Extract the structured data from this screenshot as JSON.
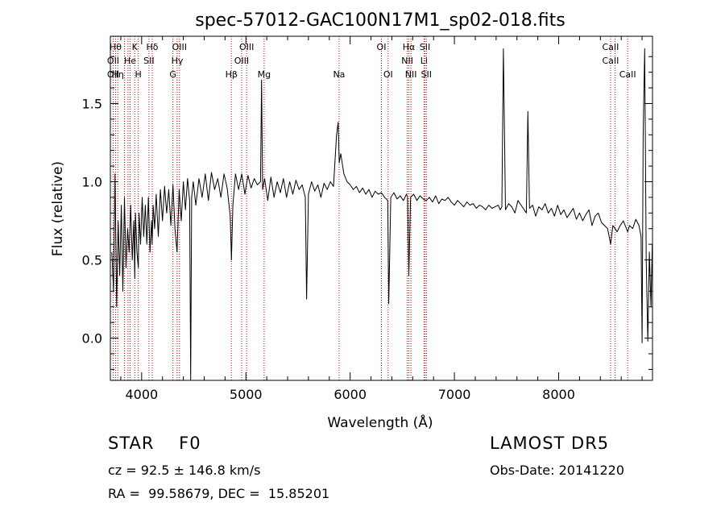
{
  "chart_data": {
    "type": "line",
    "title": "spec-57012-GAC100N17M1_sp02-018.fits",
    "xlabel": "Wavelength (Å)",
    "ylabel": "Flux (relative)",
    "xlim": [
      3700,
      8900
    ],
    "ylim": [
      -0.27,
      1.93
    ],
    "xticks": [
      4000,
      5000,
      6000,
      7000,
      8000
    ],
    "yticks": [
      0.0,
      0.5,
      1.0,
      1.5
    ],
    "ytick_labels": [
      "0.0",
      "0.5",
      "1.0",
      "1.5"
    ],
    "grid": false,
    "series": [
      {
        "color": "#000000",
        "x": [
          3715,
          3730,
          3745,
          3760,
          3775,
          3790,
          3805,
          3820,
          3835,
          3850,
          3865,
          3880,
          3895,
          3910,
          3925,
          3934,
          3940,
          3955,
          3968,
          3975,
          3990,
          4005,
          4020,
          4035,
          4050,
          4065,
          4080,
          4095,
          4101,
          4110,
          4125,
          4140,
          4160,
          4180,
          4200,
          4220,
          4240,
          4260,
          4280,
          4300,
          4320,
          4340,
          4360,
          4380,
          4400,
          4420,
          4440,
          4460,
          4470,
          4480,
          4495,
          4520,
          4550,
          4580,
          4610,
          4640,
          4670,
          4700,
          4730,
          4760,
          4790,
          4820,
          4850,
          4861,
          4875,
          4900,
          4930,
          4960,
          4990,
          5020,
          5050,
          5080,
          5110,
          5140,
          5150,
          5160,
          5180,
          5210,
          5240,
          5270,
          5300,
          5330,
          5360,
          5390,
          5420,
          5450,
          5480,
          5510,
          5540,
          5570,
          5582,
          5600,
          5630,
          5660,
          5690,
          5720,
          5750,
          5780,
          5810,
          5840,
          5870,
          5885,
          5895,
          5910,
          5940,
          5970,
          6000,
          6030,
          6060,
          6090,
          6120,
          6150,
          6180,
          6210,
          6240,
          6270,
          6300,
          6330,
          6360,
          6370,
          6390,
          6420,
          6450,
          6480,
          6510,
          6540,
          6550,
          6563,
          6580,
          6610,
          6640,
          6670,
          6700,
          6730,
          6760,
          6790,
          6820,
          6850,
          6880,
          6910,
          6940,
          6970,
          7000,
          7030,
          7060,
          7090,
          7120,
          7150,
          7180,
          7210,
          7240,
          7270,
          7300,
          7330,
          7360,
          7390,
          7420,
          7440,
          7455,
          7470,
          7490,
          7520,
          7550,
          7580,
          7610,
          7640,
          7670,
          7690,
          7705,
          7720,
          7750,
          7780,
          7810,
          7840,
          7870,
          7900,
          7930,
          7960,
          7990,
          8020,
          8050,
          8080,
          8110,
          8140,
          8170,
          8200,
          8230,
          8260,
          8290,
          8320,
          8350,
          8380,
          8410,
          8440,
          8470,
          8498,
          8520,
          8542,
          8560,
          8590,
          8620,
          8650,
          8662,
          8680,
          8710,
          8740,
          8770,
          8790,
          8800,
          8810,
          8825,
          8840,
          8855,
          8870,
          8885,
          8898
        ],
        "y": [
          0.55,
          0.3,
          1.05,
          0.2,
          0.75,
          0.4,
          0.85,
          0.3,
          0.9,
          0.45,
          0.7,
          0.55,
          0.85,
          0.5,
          0.75,
          0.38,
          0.8,
          0.55,
          0.45,
          0.8,
          0.6,
          0.9,
          0.65,
          0.85,
          0.6,
          0.9,
          0.55,
          0.75,
          0.6,
          0.85,
          0.7,
          0.92,
          0.65,
          0.95,
          0.75,
          0.97,
          0.8,
          0.95,
          0.72,
          0.98,
          0.7,
          0.55,
          0.95,
          0.75,
          1.0,
          0.82,
          1.02,
          0.88,
          -0.27,
          0.9,
          1.0,
          0.85,
          1.02,
          0.9,
          1.05,
          0.88,
          1.06,
          0.95,
          1.02,
          0.9,
          1.05,
          0.96,
          0.78,
          0.5,
          0.85,
          1.05,
          0.95,
          1.05,
          0.92,
          1.04,
          0.96,
          1.02,
          0.98,
          1.0,
          1.65,
          0.95,
          1.02,
          0.88,
          1.03,
          0.9,
          1.0,
          0.93,
          1.02,
          0.9,
          1.0,
          0.92,
          1.01,
          0.95,
          0.98,
          0.9,
          0.25,
          0.92,
          1.0,
          0.94,
          0.98,
          0.9,
          0.99,
          0.95,
          1.0,
          0.97,
          1.3,
          1.38,
          1.12,
          1.18,
          1.05,
          1.0,
          0.98,
          0.95,
          0.97,
          0.93,
          0.96,
          0.92,
          0.95,
          0.9,
          0.94,
          0.92,
          0.93,
          0.9,
          0.88,
          0.22,
          0.9,
          0.93,
          0.89,
          0.91,
          0.88,
          0.92,
          0.9,
          0.4,
          0.9,
          0.92,
          0.88,
          0.91,
          0.89,
          0.88,
          0.9,
          0.87,
          0.91,
          0.86,
          0.89,
          0.88,
          0.9,
          0.87,
          0.85,
          0.88,
          0.86,
          0.84,
          0.87,
          0.85,
          0.86,
          0.83,
          0.85,
          0.84,
          0.82,
          0.85,
          0.83,
          0.84,
          0.85,
          0.82,
          0.84,
          1.85,
          0.82,
          0.86,
          0.84,
          0.8,
          0.88,
          0.85,
          0.82,
          0.8,
          1.45,
          0.83,
          0.85,
          0.78,
          0.84,
          0.82,
          0.86,
          0.8,
          0.83,
          0.78,
          0.85,
          0.79,
          0.82,
          0.77,
          0.8,
          0.83,
          0.76,
          0.8,
          0.75,
          0.79,
          0.82,
          0.72,
          0.78,
          0.8,
          0.74,
          0.72,
          0.7,
          0.6,
          0.72,
          0.7,
          0.68,
          0.72,
          0.75,
          0.7,
          0.68,
          0.72,
          0.7,
          0.76,
          0.72,
          0.65,
          -0.03,
          1.3,
          1.85,
          0.5,
          -0.02,
          0.55,
          0.2,
          0.6
        ]
      }
    ],
    "lines": [
      {
        "wavelength": 3727,
        "label": "OII"
      },
      {
        "wavelength": 3750,
        "label": "Hθ"
      },
      {
        "wavelength": 3771,
        "label": "Hη"
      },
      {
        "wavelength": 3835,
        "label": "Hε"
      },
      {
        "wavelength": 3869,
        "label": "OII"
      },
      {
        "wavelength": 3889,
        "label": "He"
      },
      {
        "wavelength": 3934,
        "label": "K"
      },
      {
        "wavelength": 3968,
        "label": "H"
      },
      {
        "wavelength": 4070,
        "label": "SII"
      },
      {
        "wavelength": 4102,
        "label": "Hδ"
      },
      {
        "wavelength": 4300,
        "label": "G"
      },
      {
        "wavelength": 4341,
        "label": "Hγ"
      },
      {
        "wavelength": 4363,
        "label": "OIII"
      },
      {
        "wavelength": 4861,
        "label": "Hβ"
      },
      {
        "wavelength": 4959,
        "label": "OIII"
      },
      {
        "wavelength": 5007,
        "label": "OIII"
      },
      {
        "wavelength": 5175,
        "label": "Mg"
      },
      {
        "wavelength": 5894,
        "label": "Na"
      },
      {
        "wavelength": 6300,
        "label": "OI"
      },
      {
        "wavelength": 6364,
        "label": "OI"
      },
      {
        "wavelength": 6548,
        "label": "NII"
      },
      {
        "wavelength": 6563,
        "label": "Hα"
      },
      {
        "wavelength": 6583,
        "label": "NII"
      },
      {
        "wavelength": 6708,
        "label": "Li"
      },
      {
        "wavelength": 6717,
        "label": "SII"
      },
      {
        "wavelength": 6731,
        "label": "SII"
      },
      {
        "wavelength": 8498,
        "label": "CaII"
      },
      {
        "wavelength": 8542,
        "label": "CaII"
      },
      {
        "wavelength": 8662,
        "label": "CaII"
      }
    ],
    "line_color": "#cc0000",
    "line_labels": [
      {
        "text": "Hθ",
        "wavelength": 3750,
        "row": 0
      },
      {
        "text": "K",
        "wavelength": 3934,
        "row": 0
      },
      {
        "text": "Hδ",
        "wavelength": 4102,
        "row": 0
      },
      {
        "text": "OIII",
        "wavelength": 4363,
        "row": 0
      },
      {
        "text": "OIII",
        "wavelength": 5007,
        "row": 0
      },
      {
        "text": "OI",
        "wavelength": 6300,
        "row": 0
      },
      {
        "text": "Hα",
        "wavelength": 6563,
        "row": 0
      },
      {
        "text": "SII",
        "wavelength": 6717,
        "row": 0
      },
      {
        "text": "CaII",
        "wavelength": 8498,
        "row": 0
      },
      {
        "text": "OII",
        "wavelength": 3727,
        "row": 1
      },
      {
        "text": "He",
        "wavelength": 3889,
        "row": 1
      },
      {
        "text": "SII",
        "wavelength": 4070,
        "row": 1
      },
      {
        "text": "Hγ",
        "wavelength": 4341,
        "row": 1
      },
      {
        "text": "OIII",
        "wavelength": 4959,
        "row": 1
      },
      {
        "text": "NII",
        "wavelength": 6548,
        "row": 1
      },
      {
        "text": "Li",
        "wavelength": 6708,
        "row": 1
      },
      {
        "text": "CaII",
        "wavelength": 8498,
        "row": 1
      },
      {
        "text": "OII",
        "wavelength": 3727,
        "row": 2
      },
      {
        "text": "Hη",
        "wavelength": 3771,
        "row": 2
      },
      {
        "text": "H",
        "wavelength": 3968,
        "row": 2
      },
      {
        "text": "G",
        "wavelength": 4300,
        "row": 2
      },
      {
        "text": "Hβ",
        "wavelength": 4861,
        "row": 2
      },
      {
        "text": "Mg",
        "wavelength": 5175,
        "row": 2
      },
      {
        "text": "Na",
        "wavelength": 5894,
        "row": 2
      },
      {
        "text": "OI",
        "wavelength": 6364,
        "row": 2
      },
      {
        "text": "NII",
        "wavelength": 6583,
        "row": 2
      },
      {
        "text": "SII",
        "wavelength": 6731,
        "row": 2
      },
      {
        "text": "CaII",
        "wavelength": 8662,
        "row": 2
      }
    ]
  },
  "footer": {
    "object_class": "STAR    F0",
    "survey": "LAMOST DR5",
    "redshift": "cz = 92.5 ± 146.8 km/s",
    "obs_date": "Obs-Date: 20141220",
    "radec": "RA =  99.58679, DEC =  15.85201"
  }
}
